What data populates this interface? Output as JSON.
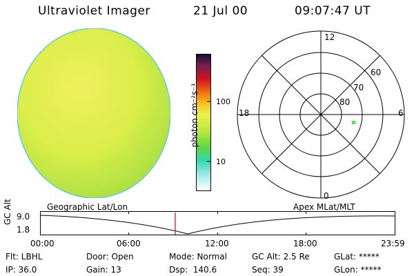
{
  "header": {
    "title": "Ultraviolet Imager",
    "date": "21 Jul 00",
    "time": "09:07:47 UT"
  },
  "colorbar": {
    "label": "photon cm⁻²s⁻¹",
    "ticks": [
      "100",
      "10"
    ]
  },
  "polar_plot": {
    "mlt_labels": [
      "12",
      "18",
      "6",
      "0"
    ],
    "lat_labels": [
      "60",
      "70",
      "80"
    ],
    "marker_color": "#44ee44"
  },
  "timeline": {
    "left_title": "Geographic Lat/Lon",
    "right_title": "Apex MLat/MLT",
    "y_axis_label": "GC Alt",
    "y_max": "9.0",
    "y_min": "1.8",
    "x_ticks": [
      "00:00",
      "06:00",
      "12:00",
      "18:00",
      "23:59"
    ],
    "current_time_color": "#dd0000"
  },
  "status": {
    "flt": "Flt: LBHL",
    "ip": "IP: 36.0",
    "door": "Door: Open",
    "gain": "Gain: 13",
    "mode": "Mode: Normal",
    "dsp": "Dsp:  140.6",
    "gc_alt": "GC Alt: 2.5 Re",
    "seq": "Seq: 39",
    "glat": "GLat: *****",
    "glon": "GLon: *****"
  }
}
